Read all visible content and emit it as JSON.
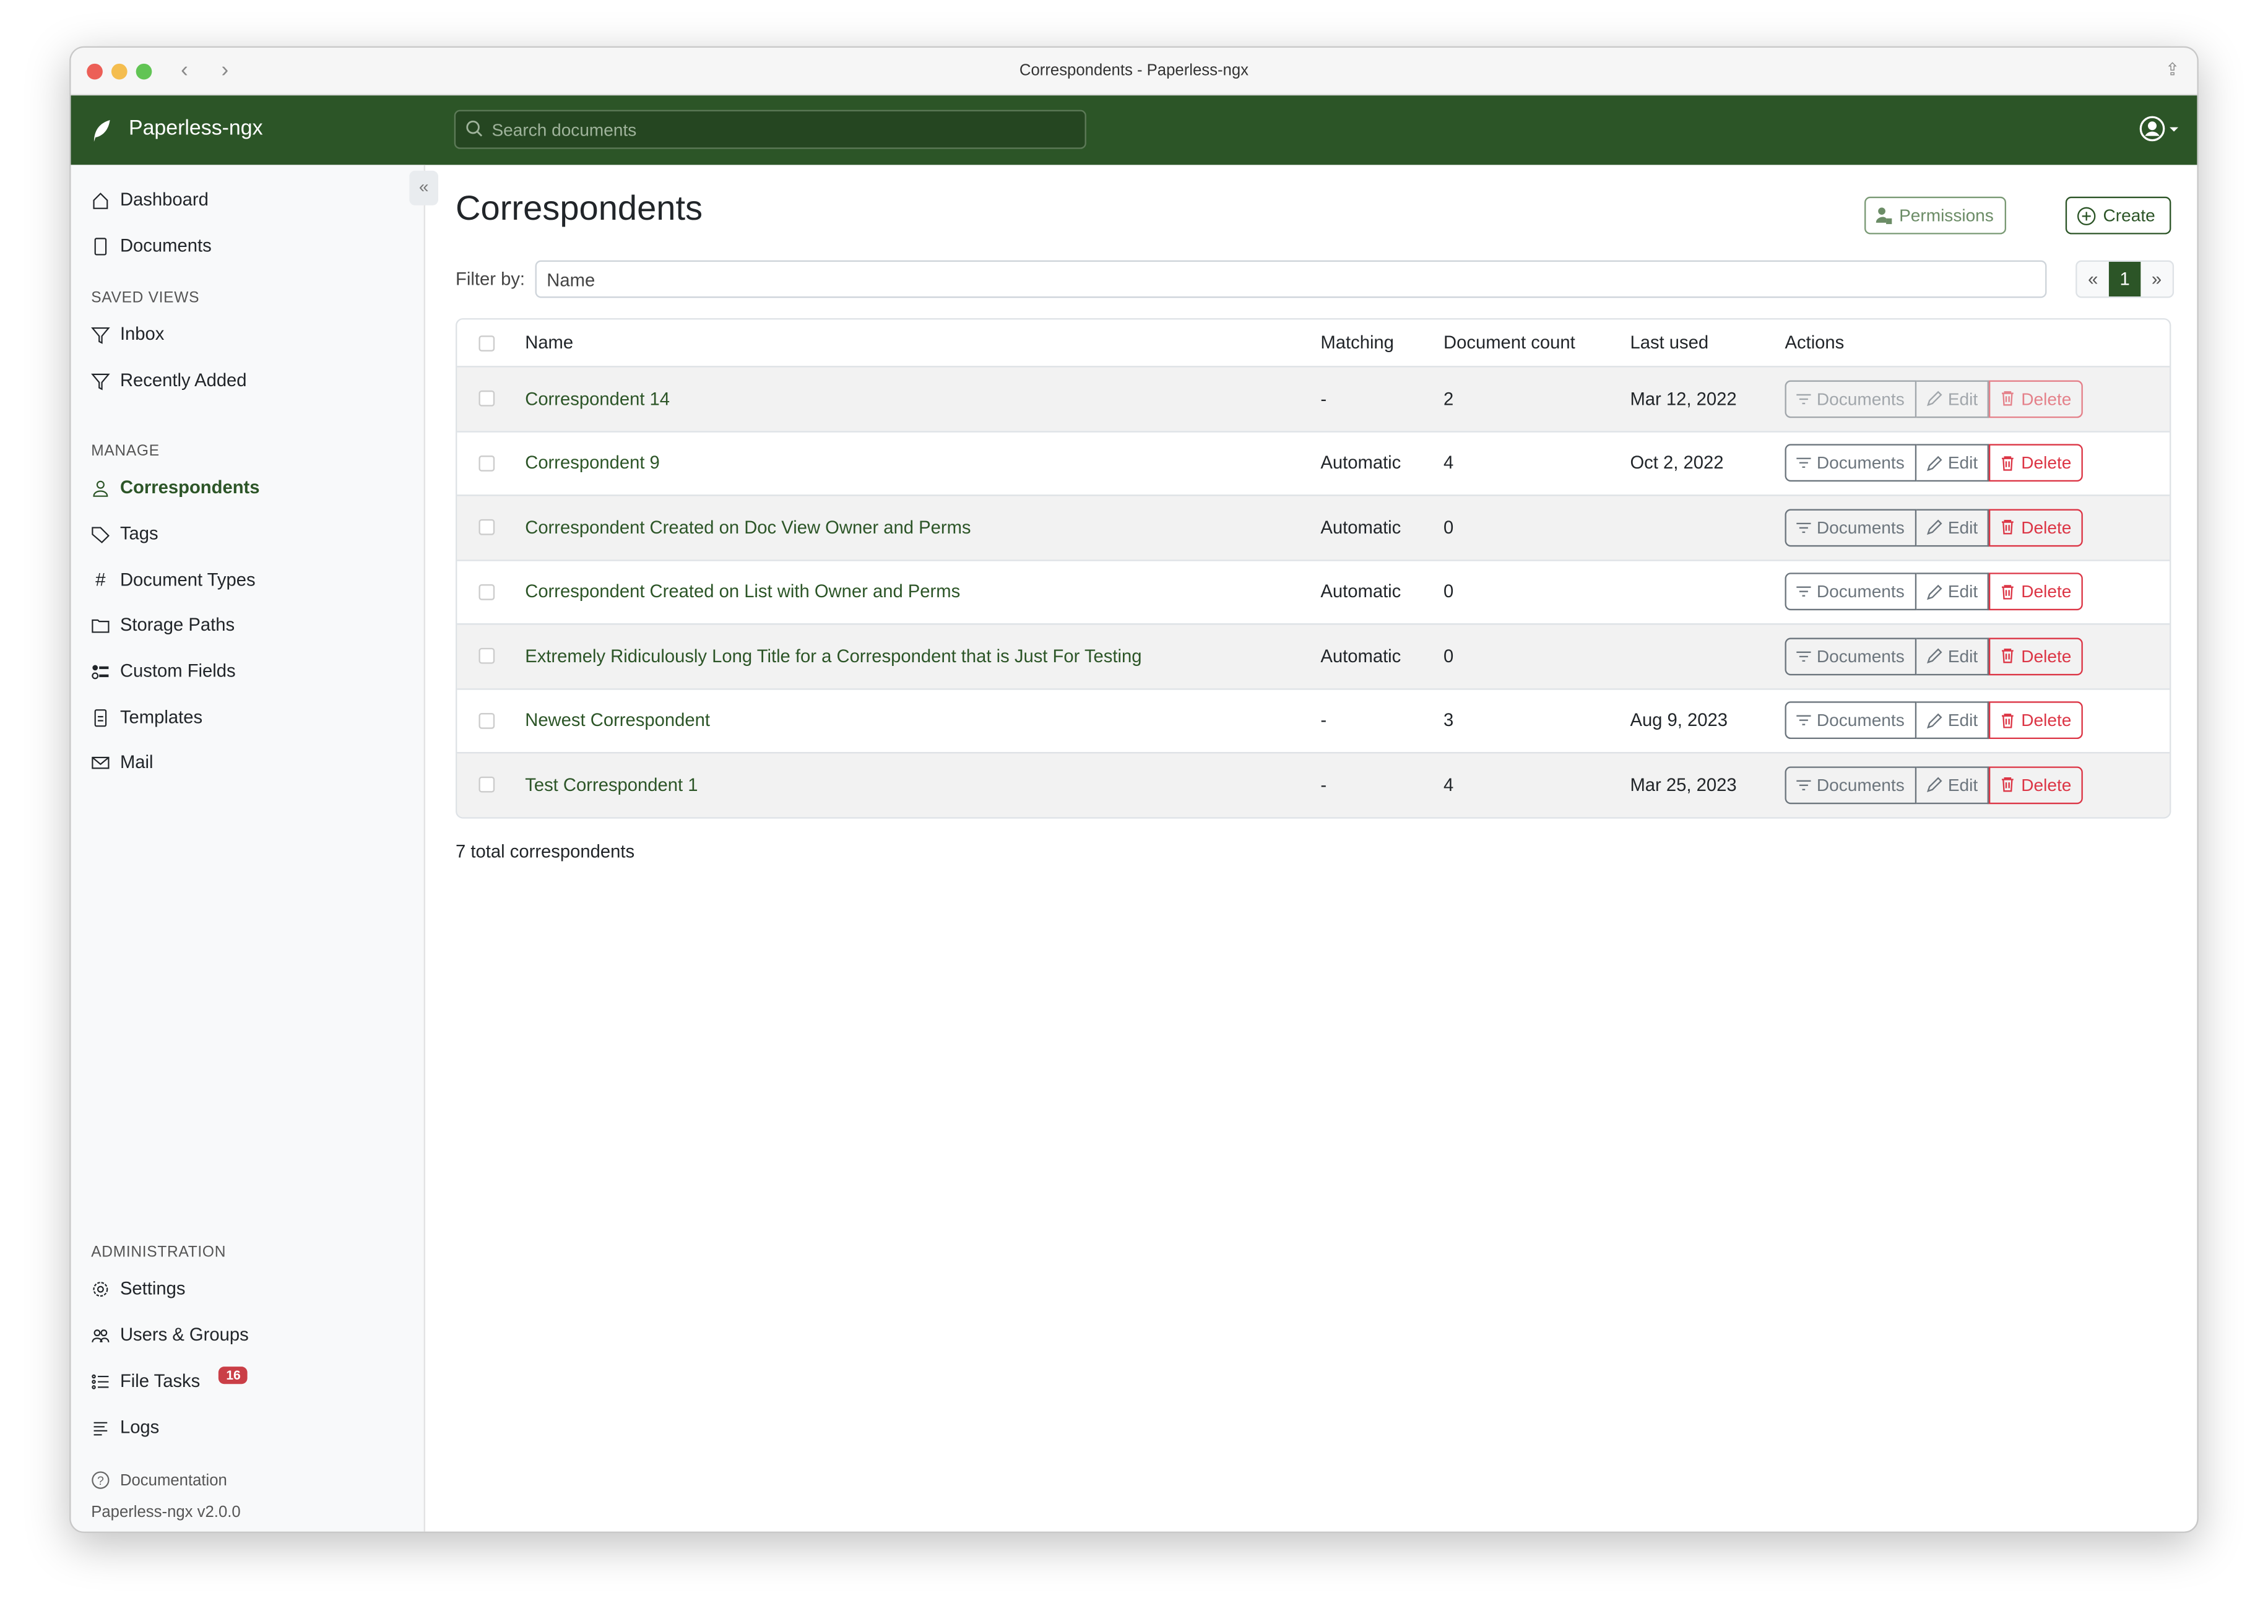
{
  "window": {
    "title": "Correspondents - Paperless-ngx"
  },
  "navbar": {
    "brand": "Paperless-ngx",
    "search_placeholder": "Search documents"
  },
  "sidebar": {
    "main": [
      {
        "label": "Dashboard",
        "icon": "house-icon"
      },
      {
        "label": "Documents",
        "icon": "files-icon"
      }
    ],
    "saved_views_heading": "SAVED VIEWS",
    "saved_views": [
      {
        "label": "Inbox",
        "icon": "funnel-icon"
      },
      {
        "label": "Recently Added",
        "icon": "funnel-icon"
      }
    ],
    "manage_heading": "MANAGE",
    "manage": [
      {
        "label": "Correspondents",
        "icon": "person-icon",
        "active": true
      },
      {
        "label": "Tags",
        "icon": "tags-icon"
      },
      {
        "label": "Document Types",
        "icon": "hash-icon"
      },
      {
        "label": "Storage Paths",
        "icon": "folder-icon"
      },
      {
        "label": "Custom Fields",
        "icon": "ui-radios-icon"
      },
      {
        "label": "Templates",
        "icon": "file-text-icon"
      },
      {
        "label": "Mail",
        "icon": "envelope-icon"
      }
    ],
    "admin_heading": "ADMINISTRATION",
    "admin": [
      {
        "label": "Settings",
        "icon": "gear-icon"
      },
      {
        "label": "Users & Groups",
        "icon": "people-icon"
      },
      {
        "label": "File Tasks",
        "icon": "list-task-icon",
        "badge": "16"
      },
      {
        "label": "Logs",
        "icon": "text-left-icon"
      }
    ],
    "documentation": "Documentation",
    "version": "Paperless-ngx v2.0.0"
  },
  "main": {
    "title": "Correspondents",
    "permissions_label": "Permissions",
    "create_label": "Create",
    "filter_label": "Filter by:",
    "filter_placeholder": "Name",
    "pager": {
      "prev": "«",
      "current": "1",
      "next": "»"
    },
    "columns": [
      "Name",
      "Matching",
      "Document count",
      "Last used",
      "Actions"
    ],
    "action_labels": {
      "documents": "Documents",
      "edit": "Edit",
      "delete": "Delete"
    },
    "rows": [
      {
        "name": "Correspondent 14",
        "matching": "-",
        "count": "2",
        "last_used": "Mar 12, 2022",
        "disabled": true
      },
      {
        "name": "Correspondent 9",
        "matching": "Automatic",
        "count": "4",
        "last_used": "Oct 2, 2022"
      },
      {
        "name": "Correspondent Created on Doc View Owner and Perms",
        "matching": "Automatic",
        "count": "0",
        "last_used": ""
      },
      {
        "name": "Correspondent Created on List with Owner and Perms",
        "matching": "Automatic",
        "count": "0",
        "last_used": ""
      },
      {
        "name": "Extremely Ridiculously Long Title for a Correspondent that is Just For Testing",
        "matching": "Automatic",
        "count": "0",
        "last_used": ""
      },
      {
        "name": "Newest Correspondent",
        "matching": "-",
        "count": "3",
        "last_used": "Aug 9, 2023"
      },
      {
        "name": "Test Correspondent 1",
        "matching": "-",
        "count": "4",
        "last_used": "Mar 25, 2023"
      }
    ],
    "total": "7 total correspondents"
  },
  "colors": {
    "brand": "#2c5527",
    "danger": "#dc3545",
    "badge": "#ca3f47"
  }
}
